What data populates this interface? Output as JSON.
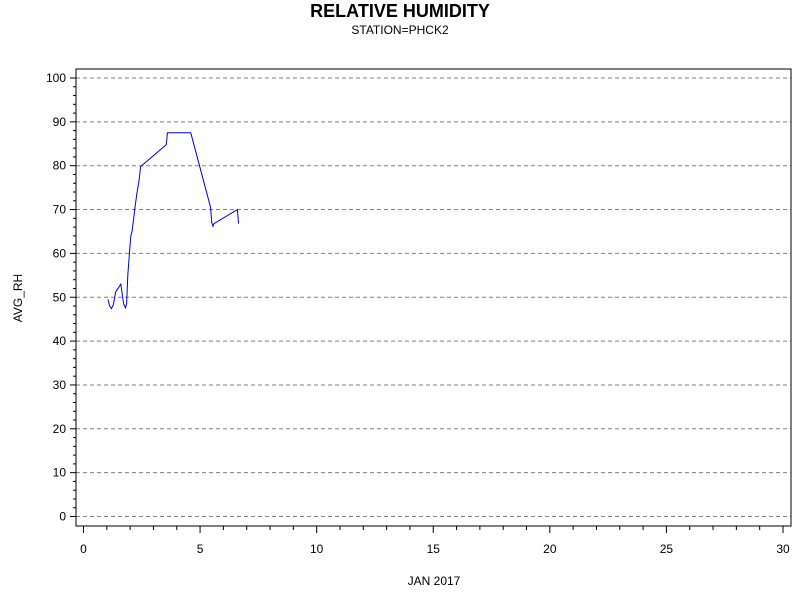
{
  "chart_data": {
    "type": "line",
    "title": "RELATIVE HUMIDITY",
    "subtitle": "STATION=PHCK2",
    "xlabel": "JAN 2017",
    "ylabel": "AVG_RH",
    "xlim": [
      0,
      30
    ],
    "ylim": [
      0,
      100
    ],
    "x_ticks": [
      0,
      5,
      10,
      15,
      20,
      25,
      30
    ],
    "y_ticks": [
      0,
      10,
      20,
      30,
      40,
      50,
      60,
      70,
      80,
      90,
      100
    ],
    "grid": "horizontal dashed at major y ticks",
    "line_color": "#0000cc",
    "series": [
      {
        "points": [
          [
            1.05,
            49.5
          ],
          [
            1.12,
            48.0
          ],
          [
            1.2,
            47.4
          ],
          [
            1.28,
            48.3
          ],
          [
            1.38,
            51.2
          ],
          [
            1.6,
            53.0
          ],
          [
            1.72,
            48.5
          ],
          [
            1.8,
            47.6
          ],
          [
            1.85,
            48.6
          ],
          [
            1.9,
            55.0
          ],
          [
            1.97,
            60.0
          ],
          [
            2.03,
            64.0
          ],
          [
            2.08,
            65.0
          ],
          [
            2.14,
            67.5
          ],
          [
            2.22,
            71.0
          ],
          [
            2.3,
            74.0
          ],
          [
            2.38,
            76.5
          ],
          [
            2.45,
            79.8
          ],
          [
            3.55,
            84.8
          ],
          [
            3.6,
            87.5
          ],
          [
            4.6,
            87.5
          ],
          [
            5.45,
            70.5
          ],
          [
            5.5,
            67.0
          ],
          [
            5.55,
            66.2
          ],
          [
            5.6,
            66.8
          ],
          [
            6.6,
            70.0
          ],
          [
            6.65,
            66.8
          ]
        ]
      }
    ]
  }
}
